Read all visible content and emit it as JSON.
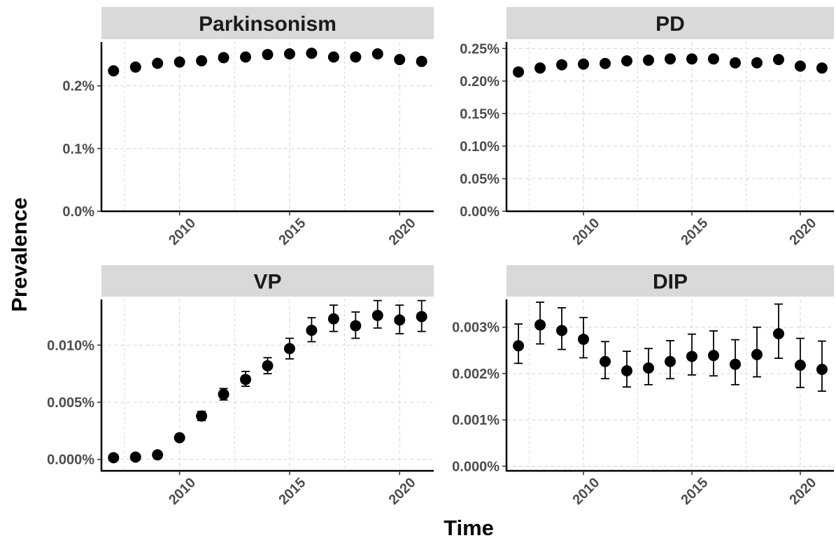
{
  "chart_data": {
    "type": "scatter",
    "xlabel": "Time",
    "ylabel": "Prevalence",
    "x_ticks": [
      2010,
      2015,
      2020
    ],
    "grid": true,
    "panels": [
      {
        "title": "Parkinsonism",
        "ylim": [
          0,
          0.0027
        ],
        "y_ticks": [
          0,
          0.001,
          0.002
        ],
        "y_tick_labels": [
          "0.0%",
          "0.1%",
          "0.2%"
        ],
        "x": [
          2007,
          2008,
          2009,
          2010,
          2011,
          2012,
          2013,
          2014,
          2015,
          2016,
          2017,
          2018,
          2019,
          2020,
          2021
        ],
        "y": [
          0.00224,
          0.0023,
          0.00236,
          0.00238,
          0.0024,
          0.00245,
          0.00246,
          0.0025,
          0.00251,
          0.00252,
          0.00246,
          0.00246,
          0.00251,
          0.00242,
          0.00239
        ],
        "err_low": null,
        "err_high": null
      },
      {
        "title": "PD",
        "ylim": [
          0,
          0.0026
        ],
        "y_ticks": [
          0,
          0.0005,
          0.001,
          0.0015,
          0.002,
          0.0025
        ],
        "y_tick_labels": [
          "0.00%",
          "0.05%",
          "0.10%",
          "0.15%",
          "0.20%",
          "0.25%"
        ],
        "x": [
          2007,
          2008,
          2009,
          2010,
          2011,
          2012,
          2013,
          2014,
          2015,
          2016,
          2017,
          2018,
          2019,
          2020,
          2021
        ],
        "y": [
          0.00214,
          0.0022,
          0.00225,
          0.00226,
          0.00227,
          0.00231,
          0.00232,
          0.00234,
          0.00234,
          0.00234,
          0.00228,
          0.00228,
          0.00233,
          0.00223,
          0.0022
        ],
        "err_low": null,
        "err_high": null
      },
      {
        "title": "VP",
        "ylim": [
          -1e-05,
          0.00014
        ],
        "y_ticks": [
          0,
          5e-05,
          0.0001
        ],
        "y_tick_labels": [
          "0.000%",
          "0.005%",
          "0.010%"
        ],
        "x": [
          2007,
          2008,
          2009,
          2010,
          2011,
          2012,
          2013,
          2014,
          2015,
          2016,
          2017,
          2018,
          2019,
          2020,
          2021
        ],
        "y": [
          1.5e-06,
          2e-06,
          4e-06,
          1.9e-05,
          3.8e-05,
          5.7e-05,
          7e-05,
          8.2e-05,
          9.7e-05,
          0.000113,
          0.000123,
          0.000117,
          0.000126,
          0.000122,
          0.000125
        ],
        "err_low": [
          1e-06,
          1.5e-06,
          3e-06,
          1.7e-05,
          3.4e-05,
          5.2e-05,
          6.4e-05,
          7.5e-05,
          8.8e-05,
          0.000103,
          0.000112,
          0.000106,
          0.000115,
          0.00011,
          0.000112
        ],
        "err_high": [
          2e-06,
          3e-06,
          5e-06,
          2.1e-05,
          4.2e-05,
          6.2e-05,
          7.7e-05,
          8.9e-05,
          0.000106,
          0.000124,
          0.000135,
          0.000129,
          0.000139,
          0.000135,
          0.000139
        ]
      },
      {
        "title": "DIP",
        "ylim": [
          -0.0001,
          0.0036
        ],
        "y_ticks": [
          0,
          0.001,
          0.002,
          0.003
        ],
        "y_tick_labels": [
          "0.000%",
          "0.001%",
          "0.002%",
          "0.003%"
        ],
        "x": [
          2007,
          2008,
          2009,
          2010,
          2011,
          2012,
          2013,
          2014,
          2015,
          2016,
          2017,
          2018,
          2019,
          2020,
          2021
        ],
        "y": [
          0.0026,
          0.00305,
          0.00293,
          0.00274,
          0.00226,
          0.00206,
          0.00212,
          0.00226,
          0.00237,
          0.00239,
          0.0022,
          0.00241,
          0.00286,
          0.00218,
          0.00209
        ],
        "err_low": [
          0.00222,
          0.00264,
          0.00252,
          0.00234,
          0.00189,
          0.00171,
          0.00176,
          0.00189,
          0.00197,
          0.00195,
          0.00176,
          0.00193,
          0.00233,
          0.0017,
          0.00162
        ],
        "err_high": [
          0.00307,
          0.00354,
          0.00342,
          0.00321,
          0.00269,
          0.00248,
          0.00254,
          0.00271,
          0.00285,
          0.00292,
          0.00273,
          0.003,
          0.0035,
          0.00276,
          0.0027
        ]
      }
    ]
  }
}
